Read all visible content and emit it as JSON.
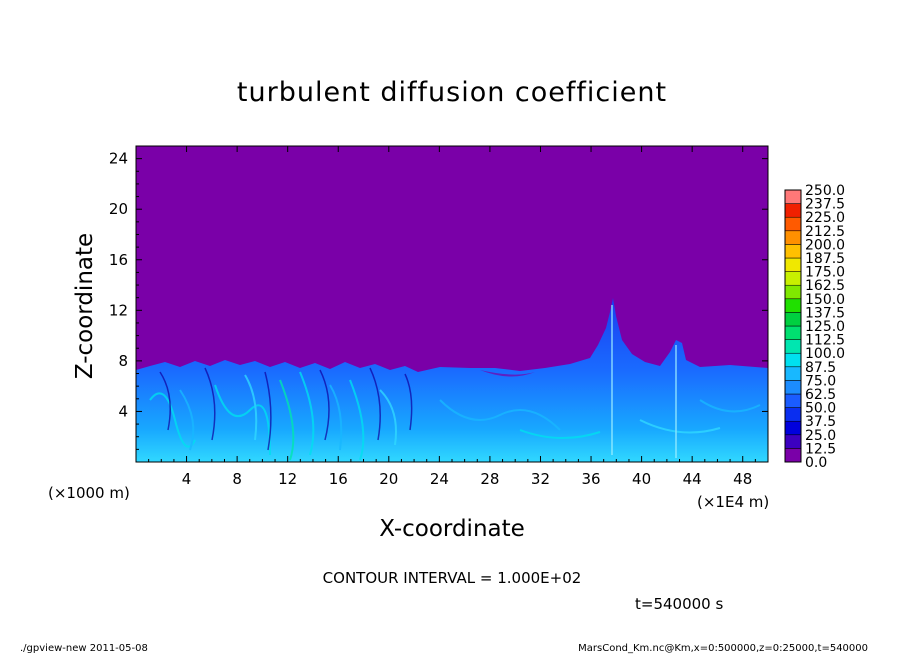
{
  "chart_data": {
    "type": "heatmap",
    "title": "turbulent diffusion coefficient",
    "xlabel": "X-coordinate",
    "ylabel": "Z-coordinate",
    "x_unit_left": "(×1000 m)",
    "x_unit_right": "(×1E4 m)",
    "xlim": [
      0,
      50
    ],
    "ylim": [
      0,
      25
    ],
    "x_ticks": [
      "4",
      "8",
      "12",
      "16",
      "20",
      "24",
      "28",
      "32",
      "36",
      "40",
      "44",
      "48"
    ],
    "y_ticks": [
      "4",
      "8",
      "12",
      "16",
      "20",
      "24"
    ],
    "x_tick_values": [
      4,
      8,
      12,
      16,
      20,
      24,
      28,
      32,
      36,
      40,
      44,
      48
    ],
    "y_tick_values": [
      4,
      8,
      12,
      16,
      20,
      24
    ],
    "background_color": "#7a00a8",
    "colorbar": {
      "levels": [
        "0.0",
        "12.5",
        "25.0",
        "37.5",
        "50.0",
        "62.5",
        "75.0",
        "87.5",
        "100.0",
        "112.5",
        "125.0",
        "137.5",
        "150.0",
        "162.5",
        "175.0",
        "187.5",
        "200.0",
        "212.5",
        "225.0",
        "237.5",
        "250.0"
      ],
      "colors": [
        "#7a00a8",
        "#3c00c0",
        "#0000dd",
        "#0a2ef0",
        "#1a5cff",
        "#1c8cff",
        "#18b8ff",
        "#00e0f0",
        "#00e6b0",
        "#00e070",
        "#00d040",
        "#20e000",
        "#80e800",
        "#c8f000",
        "#f0e800",
        "#ffc000",
        "#ff9000",
        "#ff5a00",
        "#f02000",
        "#ff7878"
      ]
    },
    "contour_interval_text": "CONTOUR INTERVAL = 1.000E+02",
    "time_text": "t=540000  s"
  },
  "footer": {
    "left": "./gpview-new   2011-05-08",
    "right": "MarsCond_Km.nc@Km,x=0:500000,z=0:25000,t=540000"
  }
}
